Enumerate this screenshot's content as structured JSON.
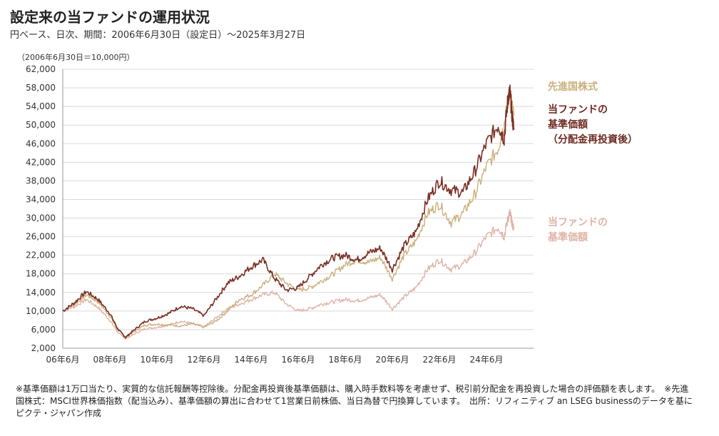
{
  "header": {
    "title": "設定来の当ファンドの運用状況",
    "subtitle": "円ベース、日次、期間：2006年6月30日（設定日）～2025年3月27日",
    "unit": "（2006年6月30日＝10,000円）"
  },
  "colors": {
    "index": "#c9b07e",
    "reinvested": "#7a2f25",
    "nav": "#dfb3a6",
    "grid": "#d9d9d9"
  },
  "chart_data": {
    "type": "line",
    "x_start": "2006-06",
    "ylim": [
      2000,
      62000
    ],
    "yticks": [
      2000,
      6000,
      10000,
      14000,
      18000,
      22000,
      26000,
      30000,
      34000,
      38000,
      42000,
      46000,
      50000,
      54000,
      58000,
      62000
    ],
    "ytick_labels": [
      "2,000",
      "6,000",
      "10,000",
      "14,000",
      "18,000",
      "22,000",
      "26,000",
      "30,000",
      "34,000",
      "38,000",
      "42,000",
      "46,000",
      "50,000",
      "54,000",
      "58,000",
      "62,000"
    ],
    "xtick_labels": [
      "06年6月",
      "08年6月",
      "10年6月",
      "12年6月",
      "14年6月",
      "16年6月",
      "18年6月",
      "20年6月",
      "22年6月",
      "24年6月"
    ],
    "grid": true,
    "legend_placement": "right",
    "series": [
      {
        "name": "先進国株式",
        "points": [
          [
            0,
            10000
          ],
          [
            6,
            11500
          ],
          [
            12,
            13500
          ],
          [
            18,
            12000
          ],
          [
            24,
            9000
          ],
          [
            28,
            6000
          ],
          [
            32,
            4500
          ],
          [
            36,
            5500
          ],
          [
            42,
            7000
          ],
          [
            48,
            7200
          ],
          [
            54,
            7000
          ],
          [
            60,
            6800
          ],
          [
            66,
            7200
          ],
          [
            72,
            6500
          ],
          [
            78,
            7800
          ],
          [
            84,
            10000
          ],
          [
            90,
            12500
          ],
          [
            96,
            13500
          ],
          [
            102,
            15500
          ],
          [
            108,
            18000
          ],
          [
            114,
            16000
          ],
          [
            120,
            14500
          ],
          [
            126,
            15000
          ],
          [
            132,
            16500
          ],
          [
            138,
            18000
          ],
          [
            144,
            20000
          ],
          [
            150,
            21000
          ],
          [
            156,
            20500
          ],
          [
            162,
            21500
          ],
          [
            168,
            17000
          ],
          [
            174,
            22000
          ],
          [
            180,
            25000
          ],
          [
            186,
            31000
          ],
          [
            192,
            33000
          ],
          [
            198,
            29000
          ],
          [
            204,
            31000
          ],
          [
            210,
            35000
          ],
          [
            216,
            41000
          ],
          [
            222,
            45000
          ],
          [
            225,
            50000
          ],
          [
            227,
            55000
          ],
          [
            228,
            56500
          ],
          [
            229,
            54000
          ],
          [
            230,
            52000
          ]
        ]
      },
      {
        "name": "当ファンドの基準価額（分配金再投資後）",
        "points": [
          [
            0,
            10000
          ],
          [
            6,
            11800
          ],
          [
            12,
            14200
          ],
          [
            18,
            12500
          ],
          [
            24,
            9500
          ],
          [
            28,
            6200
          ],
          [
            32,
            4300
          ],
          [
            36,
            5800
          ],
          [
            42,
            7800
          ],
          [
            48,
            8500
          ],
          [
            54,
            9500
          ],
          [
            60,
            11000
          ],
          [
            66,
            10500
          ],
          [
            72,
            9000
          ],
          [
            78,
            12500
          ],
          [
            84,
            16000
          ],
          [
            90,
            17500
          ],
          [
            96,
            19500
          ],
          [
            102,
            21000
          ],
          [
            108,
            17000
          ],
          [
            114,
            14500
          ],
          [
            120,
            15000
          ],
          [
            126,
            17500
          ],
          [
            132,
            20000
          ],
          [
            138,
            21500
          ],
          [
            144,
            22000
          ],
          [
            150,
            21000
          ],
          [
            156,
            22500
          ],
          [
            162,
            23500
          ],
          [
            168,
            19000
          ],
          [
            174,
            24000
          ],
          [
            180,
            27000
          ],
          [
            186,
            34000
          ],
          [
            192,
            38000
          ],
          [
            198,
            36000
          ],
          [
            204,
            35500
          ],
          [
            210,
            40000
          ],
          [
            216,
            46000
          ],
          [
            222,
            50000
          ],
          [
            225,
            47000
          ],
          [
            227,
            56000
          ],
          [
            228,
            57000
          ],
          [
            229,
            52000
          ],
          [
            230,
            49000
          ]
        ]
      },
      {
        "name": "当ファンドの基準価額",
        "points": [
          [
            0,
            10000
          ],
          [
            6,
            11000
          ],
          [
            12,
            12500
          ],
          [
            18,
            10800
          ],
          [
            24,
            8000
          ],
          [
            28,
            5500
          ],
          [
            32,
            4000
          ],
          [
            36,
            5000
          ],
          [
            42,
            6200
          ],
          [
            48,
            6500
          ],
          [
            54,
            7000
          ],
          [
            60,
            7800
          ],
          [
            66,
            7300
          ],
          [
            72,
            6600
          ],
          [
            78,
            8500
          ],
          [
            84,
            10500
          ],
          [
            90,
            11500
          ],
          [
            96,
            12500
          ],
          [
            102,
            13500
          ],
          [
            108,
            14000
          ],
          [
            114,
            11500
          ],
          [
            120,
            10000
          ],
          [
            126,
            10500
          ],
          [
            132,
            11500
          ],
          [
            138,
            12000
          ],
          [
            144,
            12500
          ],
          [
            150,
            12200
          ],
          [
            156,
            12800
          ],
          [
            162,
            13500
          ],
          [
            168,
            10500
          ],
          [
            174,
            13000
          ],
          [
            180,
            15000
          ],
          [
            186,
            19000
          ],
          [
            192,
            21000
          ],
          [
            198,
            19000
          ],
          [
            204,
            20000
          ],
          [
            210,
            22500
          ],
          [
            216,
            26000
          ],
          [
            222,
            28000
          ],
          [
            225,
            26000
          ],
          [
            227,
            30000
          ],
          [
            228,
            31000
          ],
          [
            229,
            29000
          ],
          [
            230,
            27500
          ]
        ]
      }
    ]
  },
  "legend": {
    "index_label": "先進国株式",
    "reinvested_lines": [
      "当ファンドの",
      "基準価額",
      "（分配金再投資後）"
    ],
    "nav_lines": [
      "当ファンドの",
      "基準価額"
    ]
  },
  "footnote": "※基準価額は1万口当たり、実質的な信託報酬等控除後。分配金再投資後基準価額は、購入時手数料等を考慮せず、税引前分配金を再投資した場合の評価額を表します。　※先進国株式：MSCI世界株価指数（配当込み）、基準価額の算出に合わせて1営業日前株価、当日為替で円換算しています。　出所：リフィニティブ an LSEG businessのデータを基にピクテ・ジャパン作成"
}
